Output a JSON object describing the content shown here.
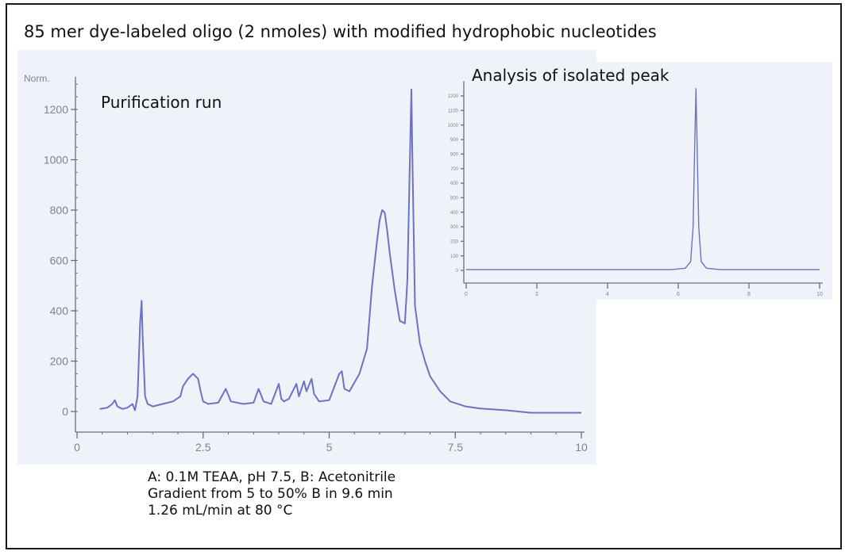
{
  "title": "85 mer dye-labeled oligo (2 nmoles) with modified hydrophobic nucleotides",
  "notes": [
    "A: 0.1M TEAA, pH 7.5, B: Acetonitrile",
    "Gradient from 5 to 50% B in 9.6 min",
    "1.26 mL/min at 80 °C"
  ],
  "colors": {
    "trace": "#6a73c4",
    "axis": "#6a6f7c",
    "panel": "#eff2f8"
  },
  "chart_data": [
    {
      "type": "line",
      "title": "Purification run",
      "ylabel": "Norm.",
      "xlabel": "",
      "xlim": [
        0,
        10
      ],
      "ylim": [
        -60,
        1330
      ],
      "xticks": [
        0,
        2.5,
        5,
        7.5,
        10
      ],
      "xtick_labels": [
        "0",
        "2.5",
        "5",
        "7.5",
        "10"
      ],
      "yticks": [
        0,
        200,
        400,
        600,
        800,
        1000,
        1200
      ],
      "ytick_labels": [
        "0",
        "200",
        "400",
        "600",
        "800",
        "1000",
        "1200"
      ],
      "series": [
        {
          "x": [
            0.45,
            0.6,
            0.7,
            0.75,
            0.8,
            0.9,
            1.0,
            1.1,
            1.15,
            1.2,
            1.25,
            1.28,
            1.3,
            1.35,
            1.4,
            1.5,
            1.7,
            1.9,
            2.05,
            2.1,
            2.2,
            2.3,
            2.35,
            2.4,
            2.45,
            2.5,
            2.6,
            2.8,
            2.95,
            3.05,
            3.3,
            3.5,
            3.6,
            3.7,
            3.85,
            4.0,
            4.05,
            4.1,
            4.2,
            4.35,
            4.4,
            4.5,
            4.55,
            4.65,
            4.7,
            4.8,
            5.0,
            5.2,
            5.25,
            5.3,
            5.4,
            5.6,
            5.75,
            5.85,
            5.95,
            6.0,
            6.05,
            6.1,
            6.15,
            6.2,
            6.3,
            6.4,
            6.5,
            6.55,
            6.6,
            6.63,
            6.65,
            6.7,
            6.8,
            6.9,
            7.0,
            7.2,
            7.4,
            7.7,
            8.0,
            8.5,
            9.0,
            9.5,
            10.0
          ],
          "y": [
            10,
            15,
            30,
            45,
            20,
            10,
            15,
            30,
            5,
            60,
            350,
            440,
            300,
            60,
            30,
            20,
            30,
            40,
            60,
            100,
            130,
            150,
            140,
            130,
            80,
            40,
            30,
            35,
            90,
            40,
            30,
            35,
            90,
            40,
            30,
            110,
            50,
            40,
            50,
            110,
            60,
            120,
            80,
            130,
            70,
            40,
            45,
            150,
            160,
            90,
            80,
            150,
            250,
            500,
            680,
            760,
            800,
            790,
            720,
            630,
            480,
            360,
            350,
            520,
            1000,
            1280,
            1000,
            420,
            270,
            200,
            140,
            80,
            40,
            20,
            12,
            5,
            -5,
            -5,
            -5
          ]
        }
      ]
    },
    {
      "type": "line",
      "title": "Analysis of isolated peak",
      "xlim": [
        0,
        10
      ],
      "ylim": [
        -40,
        1300
      ],
      "xticks": [
        0,
        2,
        4,
        6,
        8,
        10
      ],
      "xtick_labels": [
        "0",
        "2",
        "4",
        "6",
        "8",
        "10"
      ],
      "yticks": [
        0,
        100,
        200,
        300,
        400,
        500,
        600,
        700,
        800,
        900,
        1000,
        1100,
        1200
      ],
      "ytick_labels": [
        "0",
        "100",
        "200",
        "300",
        "400",
        "500",
        "600",
        "700",
        "800",
        "900",
        "1000",
        "1100",
        "1200"
      ],
      "series": [
        {
          "x": [
            0,
            5.8,
            6.2,
            6.35,
            6.42,
            6.47,
            6.5,
            6.53,
            6.58,
            6.65,
            6.8,
            7.2,
            10
          ],
          "y": [
            5,
            5,
            15,
            60,
            300,
            900,
            1250,
            900,
            300,
            60,
            15,
            5,
            5
          ]
        }
      ]
    }
  ]
}
